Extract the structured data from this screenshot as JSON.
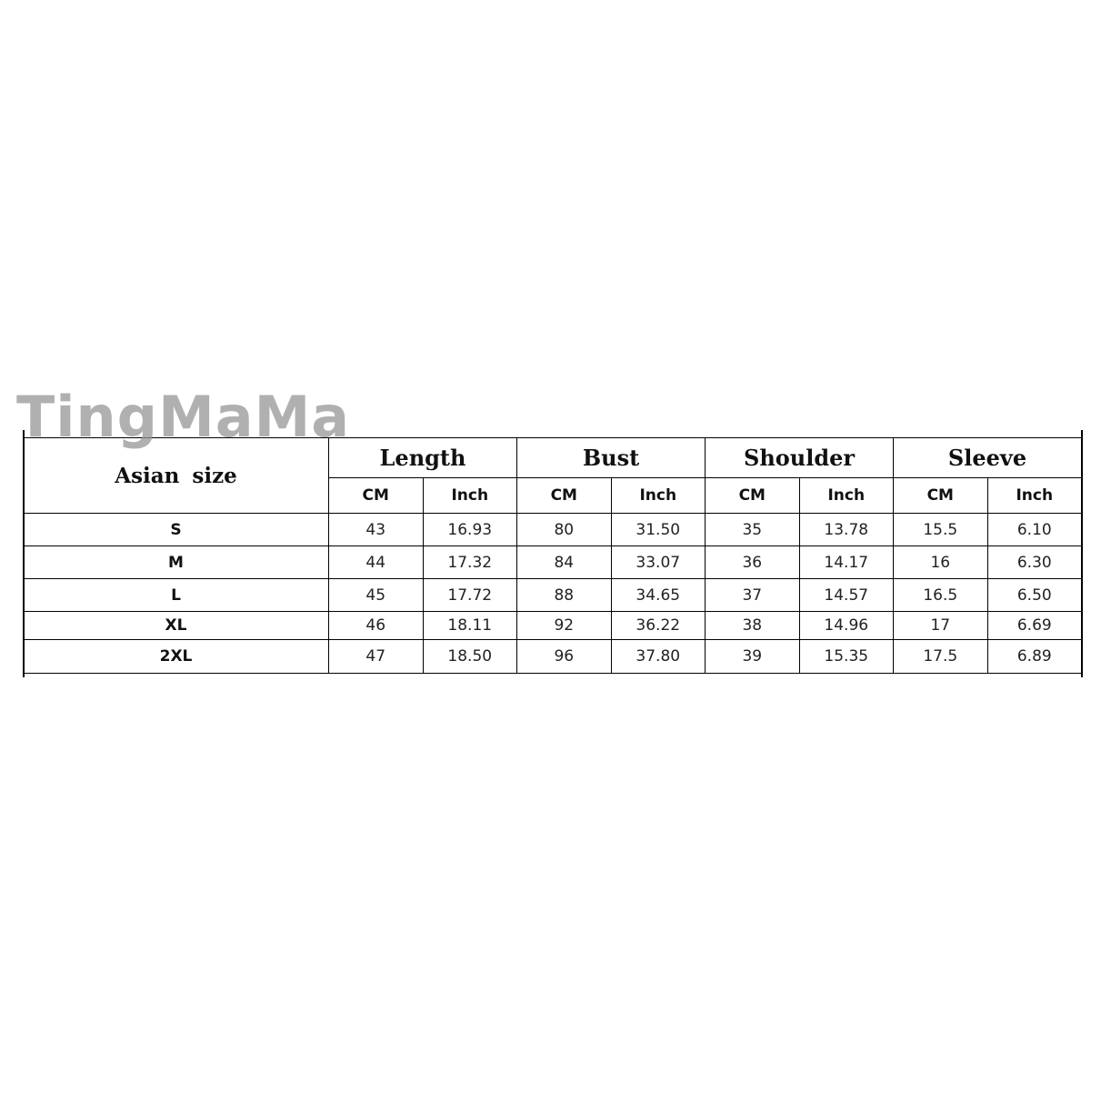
{
  "watermark": "TingMaMa",
  "table": {
    "size_header": "Asian  size",
    "groups": [
      "Length",
      "Bust",
      "Shoulder",
      "Sleeve"
    ],
    "units": [
      "CM",
      "Inch",
      "CM",
      "Inch",
      "CM",
      "Inch",
      "CM",
      "Inch"
    ],
    "rows": [
      {
        "size": "S",
        "values": [
          "43",
          "16.93",
          "80",
          "31.50",
          "35",
          "13.78",
          "15.5",
          "6.10"
        ]
      },
      {
        "size": "M",
        "values": [
          "44",
          "17.32",
          "84",
          "33.07",
          "36",
          "14.17",
          "16",
          "6.30"
        ]
      },
      {
        "size": "L",
        "values": [
          "45",
          "17.72",
          "88",
          "34.65",
          "37",
          "14.57",
          "16.5",
          "6.50"
        ]
      },
      {
        "size": "XL",
        "values": [
          "46",
          "18.11",
          "92",
          "36.22",
          "38",
          "14.96",
          "17",
          "6.69"
        ]
      },
      {
        "size": "2XL",
        "values": [
          "47",
          "18.50",
          "96",
          "37.80",
          "39",
          "15.35",
          "17.5",
          "6.89"
        ]
      }
    ]
  }
}
